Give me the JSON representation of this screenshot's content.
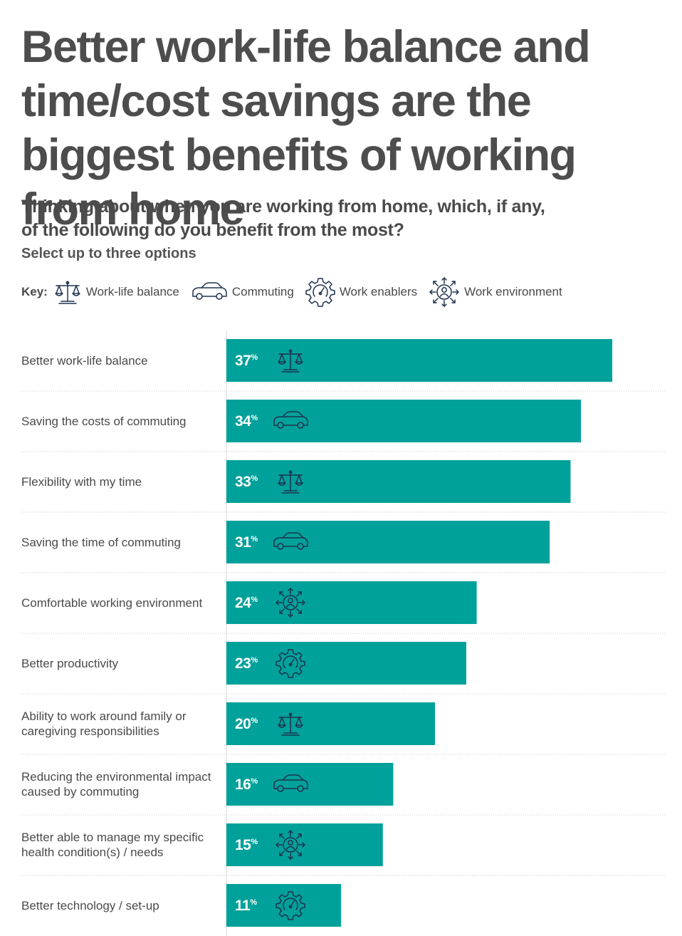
{
  "title": "Better work-life balance and time/cost savings are the biggest benefits of working from home",
  "question": "Thinking about when you are working from home, which, if any, of the following do you benefit from the most?",
  "instruction": "Select up to three options",
  "key": {
    "label": "Key:",
    "items": [
      {
        "label": "Work-life balance",
        "icon": "scales-icon"
      },
      {
        "label": "Commuting",
        "icon": "car-icon"
      },
      {
        "label": "Work enablers",
        "icon": "gear-gauge-icon"
      },
      {
        "label": "Work environment",
        "icon": "person-arrows-icon"
      }
    ]
  },
  "colors": {
    "bar": "#00a19a",
    "icon": "#1f3350",
    "text": "#4a4a4a"
  },
  "chart_data": {
    "type": "bar",
    "orientation": "horizontal",
    "unit": "%",
    "xlim": [
      0,
      40
    ],
    "categories": [
      "Better work-life balance",
      "Saving the costs of commuting",
      "Flexibility with my time",
      "Saving the time of commuting",
      "Comfortable working environment",
      "Better productivity",
      "Ability to work around family or caregiving responsibilities",
      "Reducing the environmental impact caused by commuting",
      "Better able to manage my specific health condition(s) / needs",
      "Better technology / set-up"
    ],
    "values": [
      37,
      34,
      33,
      31,
      24,
      23,
      20,
      16,
      15,
      11
    ],
    "icons": [
      "scales-icon",
      "car-icon",
      "scales-icon",
      "car-icon",
      "person-arrows-icon",
      "gear-gauge-icon",
      "scales-icon",
      "car-icon",
      "person-arrows-icon",
      "gear-gauge-icon"
    ]
  }
}
